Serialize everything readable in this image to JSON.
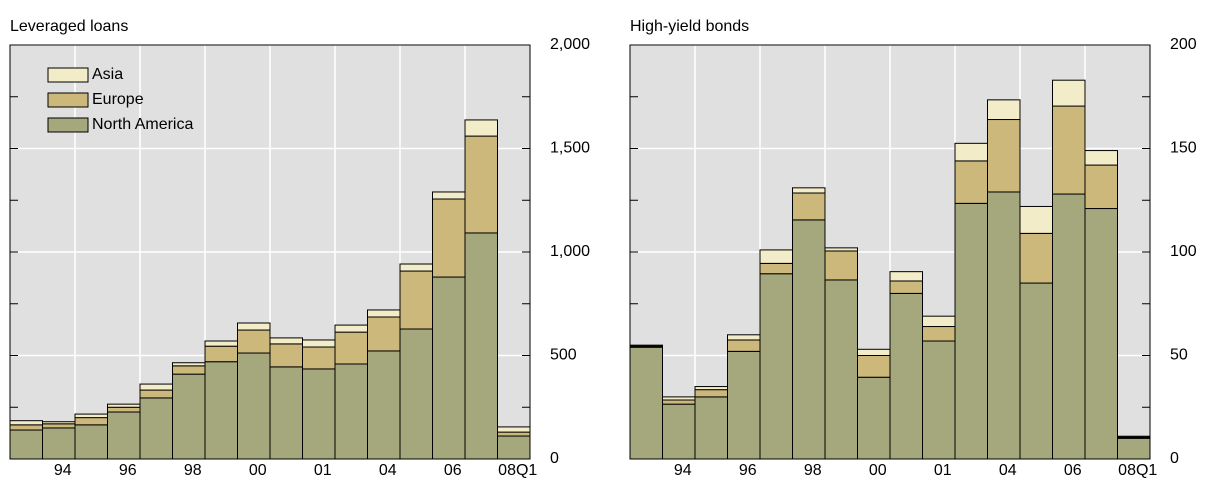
{
  "chart_data": [
    {
      "type": "bar",
      "stacked": true,
      "title": "Leveraged loans",
      "categories": [
        null,
        "94",
        null,
        "96",
        null,
        "98",
        null,
        "00",
        null,
        "01",
        null,
        "04",
        null,
        "06",
        null,
        "08Q1"
      ],
      "series": [
        {
          "name": "North America",
          "color": "#a5a87c",
          "values": [
            140,
            150,
            165,
            227,
            295,
            410,
            470,
            512,
            445,
            435,
            459,
            522,
            628,
            879,
            1092,
            111
          ]
        },
        {
          "name": "Europe",
          "color": "#cdb87c",
          "values": [
            25,
            20,
            35,
            23,
            38,
            40,
            75,
            111,
            111,
            106,
            154,
            164,
            280,
            377,
            468,
            19
          ]
        },
        {
          "name": "Asia",
          "color": "#f3ecc9",
          "values": [
            20,
            10,
            17,
            15,
            29,
            15,
            25,
            34,
            29,
            34,
            34,
            34,
            34,
            34,
            78,
            25
          ]
        }
      ],
      "ylim": [
        0,
        2000
      ],
      "yticks": [
        0,
        500,
        {
          "value": 1000,
          "label": "1,000"
        },
        {
          "value": 1500,
          "label": "1,500"
        },
        {
          "value": 2000,
          "label": "2,000"
        }
      ],
      "grid": true,
      "legend": "upper left"
    },
    {
      "type": "bar",
      "stacked": true,
      "title": "High-yield bonds",
      "categories": [
        null,
        "94",
        null,
        "96",
        null,
        "98",
        null,
        "00",
        null,
        "01",
        null,
        "04",
        null,
        "06",
        null,
        "08Q1"
      ],
      "series": [
        {
          "name": "North America",
          "color": "#a5a87c",
          "values": [
            54,
            26.5,
            30,
            52,
            89.5,
            115.5,
            86.5,
            39.5,
            80,
            57,
            123.5,
            129,
            85,
            128,
            121,
            10
          ]
        },
        {
          "name": "Europe",
          "color": "#cdb87c",
          "values": [
            0.5,
            2,
            3.5,
            5.5,
            5,
            13,
            14,
            10.5,
            6,
            7,
            20.5,
            35,
            24,
            42.5,
            21,
            0.5
          ]
        },
        {
          "name": "Asia",
          "color": "#f3ecc9",
          "values": [
            0.5,
            1.5,
            1.5,
            2.5,
            6.5,
            2.5,
            1.5,
            3,
            4.5,
            5,
            8.5,
            9.5,
            13,
            12.5,
            7,
            0.5
          ]
        }
      ],
      "ylim": [
        0,
        200
      ],
      "yticks": [
        0,
        50,
        100,
        150,
        200
      ],
      "grid": true
    }
  ]
}
